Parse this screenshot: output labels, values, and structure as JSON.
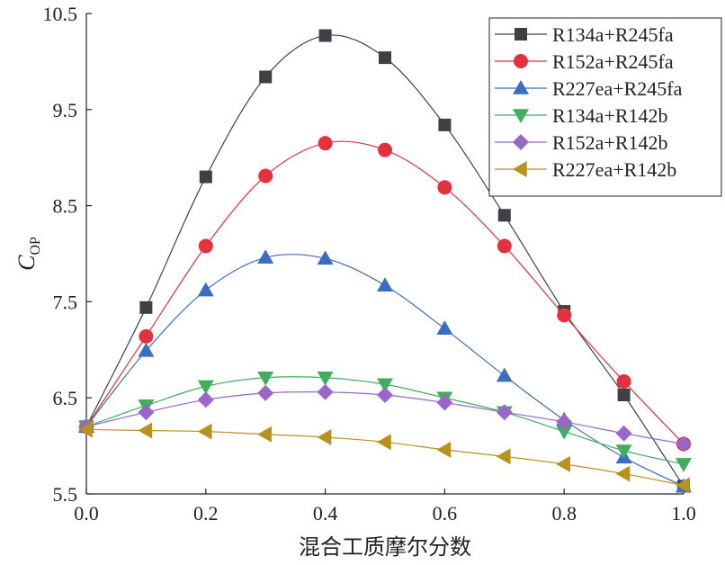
{
  "chart_data": {
    "type": "line",
    "xlabel": "混合工质摩尔分数",
    "ylabel": {
      "main": "C",
      "sub": "OP"
    },
    "xlim": [
      0.0,
      1.0
    ],
    "ylim": [
      5.5,
      10.5
    ],
    "xticks": [
      "0.0",
      "0.2",
      "0.4",
      "0.6",
      "0.8",
      "1.0"
    ],
    "yticks": [
      "5.5",
      "6.5",
      "7.5",
      "8.5",
      "9.5",
      "10.5"
    ],
    "legend_position": "top-right",
    "grid": false,
    "x": [
      0.0,
      0.1,
      0.2,
      0.3,
      0.4,
      0.5,
      0.6,
      0.7,
      0.8,
      0.9,
      1.0
    ],
    "series": [
      {
        "name": "R134a+R245fa",
        "color": "#3f4045",
        "marker": "square",
        "values": [
          6.2,
          7.44,
          8.8,
          9.84,
          10.27,
          10.04,
          9.34,
          8.4,
          7.4,
          6.53,
          5.58
        ]
      },
      {
        "name": "R152a+R245fa",
        "color": "#e2313f",
        "marker": "circle",
        "values": [
          6.2,
          7.14,
          8.08,
          8.81,
          9.15,
          9.08,
          8.69,
          8.08,
          7.36,
          6.67,
          6.02
        ]
      },
      {
        "name": "R227ea+R245fa",
        "color": "#3b6ec0",
        "marker": "triangle-up",
        "values": [
          6.2,
          6.99,
          7.62,
          7.96,
          7.95,
          7.67,
          7.22,
          6.73,
          6.27,
          5.88,
          5.58
        ]
      },
      {
        "name": "R134a+R142b",
        "color": "#3fae5f",
        "marker": "triangle-down",
        "values": [
          6.2,
          6.42,
          6.62,
          6.71,
          6.71,
          6.64,
          6.5,
          6.35,
          6.15,
          5.95,
          5.81
        ]
      },
      {
        "name": "R152a+R142b",
        "color": "#9a66c7",
        "marker": "diamond",
        "values": [
          6.2,
          6.35,
          6.48,
          6.55,
          6.56,
          6.53,
          6.45,
          6.35,
          6.25,
          6.13,
          6.02
        ]
      },
      {
        "name": "R227ea+R142b",
        "color": "#b8911f",
        "marker": "triangle-left",
        "values": [
          6.17,
          6.16,
          6.15,
          6.12,
          6.09,
          6.04,
          5.96,
          5.89,
          5.81,
          5.71,
          5.59
        ]
      }
    ]
  }
}
